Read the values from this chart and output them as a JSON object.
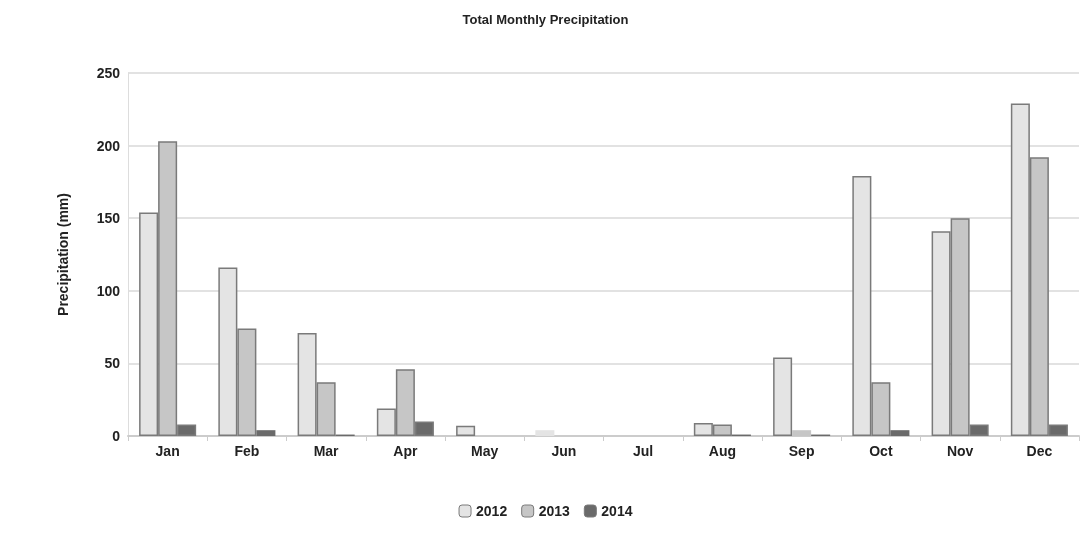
{
  "chart_data": {
    "type": "bar",
    "title": "Total Monthly Precipitation",
    "ylabel": "Precipitation (mm)",
    "categories": [
      "Jan",
      "Feb",
      "Mar",
      "Apr",
      "May",
      "Jun",
      "Jul",
      "Aug",
      "Sep",
      "Oct",
      "Nov",
      "Dec"
    ],
    "series": [
      {
        "name": "2012",
        "color": "#e4e4e4",
        "values": [
          154,
          116,
          71,
          19,
          7,
          4,
          null,
          9,
          54,
          179,
          141,
          229
        ]
      },
      {
        "name": "2013",
        "color": "#c6c6c6",
        "values": [
          203,
          74,
          37,
          46,
          null,
          0,
          null,
          8,
          4,
          37,
          150,
          192
        ]
      },
      {
        "name": "2014",
        "color": "#6a6a6a",
        "values": [
          8,
          4,
          1,
          10,
          0,
          0,
          0,
          1,
          1,
          4,
          8,
          8
        ]
      }
    ],
    "ylim": [
      0,
      250
    ],
    "yticks": [
      0,
      50,
      100,
      150,
      200,
      250
    ],
    "grid": "y",
    "legend": "bottom"
  }
}
